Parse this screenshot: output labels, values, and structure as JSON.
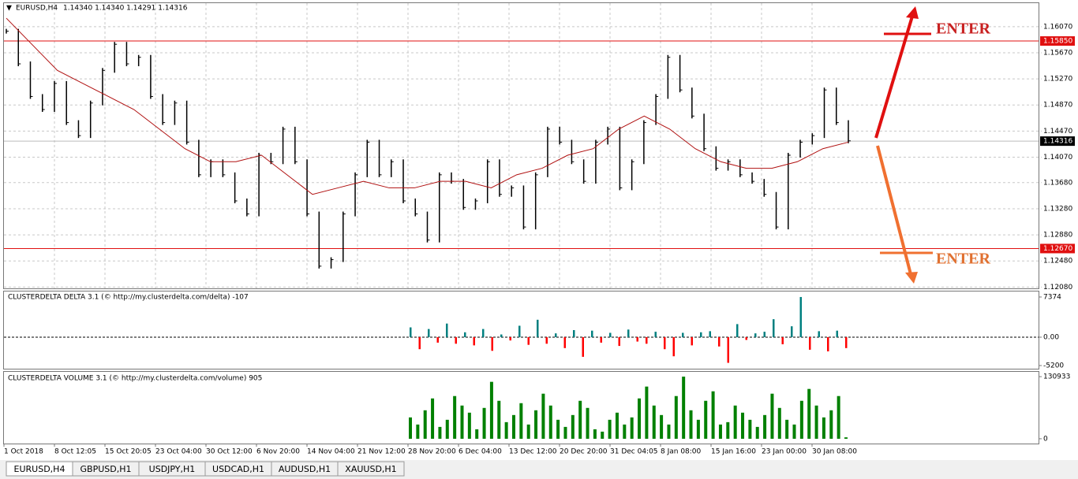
{
  "header": {
    "title": "EURUSD,H4",
    "quote": "1.14340 1.14340 1.14291 1.14316"
  },
  "price": {
    "ylim": [
      1.1206,
      1.1643
    ],
    "yticks": [
      {
        "value": 1.1607,
        "label": "1.16070"
      },
      {
        "value": 1.1567,
        "label": "1.15670"
      },
      {
        "value": 1.1527,
        "label": "1.15270"
      },
      {
        "value": 1.1487,
        "label": "1.14870"
      },
      {
        "value": 1.1447,
        "label": "1.14470"
      },
      {
        "value": 1.1407,
        "label": "1.14070"
      },
      {
        "value": 1.1368,
        "label": "1.13680"
      },
      {
        "value": 1.1328,
        "label": "1.13280"
      },
      {
        "value": 1.1288,
        "label": "1.12880"
      },
      {
        "value": 1.1248,
        "label": "1.12480"
      },
      {
        "value": 1.1208,
        "label": "1.12080"
      }
    ],
    "levels": [
      {
        "value": 1.1585,
        "label": "1.15850"
      },
      {
        "value": 1.1267,
        "label": "1.12670"
      }
    ],
    "current": {
      "value": 1.14316,
      "label": "1.14316"
    },
    "closes": [
      1.16,
      1.155,
      1.15,
      1.148,
      1.152,
      1.146,
      1.144,
      1.149,
      1.154,
      1.158,
      1.155,
      1.156,
      1.15,
      1.146,
      1.149,
      1.143,
      1.138,
      1.14,
      1.138,
      1.134,
      1.132,
      1.141,
      1.14,
      1.145,
      1.14,
      1.132,
      1.124,
      1.125,
      1.132,
      1.138,
      1.143,
      1.138,
      1.14,
      1.134,
      1.132,
      1.128,
      1.138,
      1.137,
      1.133,
      1.134,
      1.14,
      1.135,
      1.136,
      1.13,
      1.138,
      1.145,
      1.143,
      1.14,
      1.137,
      1.143,
      1.145,
      1.136,
      1.14,
      1.146,
      1.15,
      1.156,
      1.151,
      1.147,
      1.142,
      1.139,
      1.14,
      1.138,
      1.137,
      1.135,
      1.13,
      1.141,
      1.143,
      1.144,
      1.151,
      1.146,
      1.1432
    ],
    "ma": [
      1.162,
      1.158,
      1.154,
      1.152,
      1.15,
      1.148,
      1.145,
      1.142,
      1.14,
      1.14,
      1.141,
      1.138,
      1.135,
      1.136,
      1.137,
      1.136,
      1.136,
      1.137,
      1.137,
      1.136,
      1.138,
      1.139,
      1.141,
      1.142,
      1.145,
      1.147,
      1.145,
      1.142,
      1.14,
      1.139,
      1.139,
      1.14,
      1.142,
      1.143
    ],
    "annotations": [
      "ENTER",
      "ENTER"
    ]
  },
  "delta": {
    "title": "CLUSTERDELTA DELTA 3.1 (© http://my.clusterdelta.com/delta) -107",
    "ylim": [
      -5780,
      8382
    ],
    "yticks": [
      7374,
      {
        "value": 0,
        "label": "0.00"
      },
      -5200
    ],
    "values": [
      1800,
      -2200,
      1500,
      -1000,
      2500,
      -1200,
      900,
      -1500,
      1500,
      -2500,
      500,
      -600,
      2100,
      -1400,
      3200,
      -1200,
      700,
      -2000,
      1300,
      -3600,
      1200,
      -1000,
      800,
      -1600,
      1400,
      -800,
      -1200,
      1000,
      -2200,
      -3500,
      800,
      -1500,
      900,
      1100,
      -1700,
      -4700,
      2400,
      -500,
      700,
      1000,
      3300,
      -1300,
      2000,
      7374,
      -2300,
      1100,
      -2600,
      1200,
      -2000
    ]
  },
  "volume": {
    "title": "CLUSTERDELTA VOLUME 3.1 (© http://my.clusterdelta.com/volume) 905",
    "ylim": [
      -10070,
      141000
    ],
    "yticks": [
      130933,
      0
    ],
    "values": [
      45000,
      30000,
      60000,
      85000,
      25000,
      40000,
      90000,
      70000,
      55000,
      20000,
      65000,
      120000,
      80000,
      35000,
      50000,
      75000,
      30000,
      60000,
      95000,
      70000,
      40000,
      25000,
      50000,
      80000,
      65000,
      20000,
      15000,
      40000,
      55000,
      30000,
      45000,
      85000,
      110000,
      70000,
      50000,
      30000,
      90000,
      130933,
      60000,
      40000,
      80000,
      100000,
      30000,
      35000,
      70000,
      55000,
      40000,
      25000,
      50000,
      95000,
      65000,
      40000,
      30000,
      80000,
      105000,
      70000,
      45000,
      60000,
      90000,
      3000
    ]
  },
  "time_labels": [
    "1 Oct 2018",
    "8 Oct 12:05",
    "15 Oct 20:05",
    "23 Oct 04:00",
    "30 Oct 12:00",
    "6 Nov 20:00",
    "14 Nov 04:00",
    "21 Nov 12:00",
    "28 Nov 20:00",
    "6 Dec 04:00",
    "13 Dec 12:00",
    "20 Dec 20:00",
    "31 Dec 04:05",
    "8 Jan 08:00",
    "15 Jan 16:00",
    "23 Jan 00:00",
    "30 Jan 08:00"
  ],
  "tabs": [
    "EURUSD,H4",
    "GBPUSD,H1",
    "USDJPY,H1",
    "USDCAD,H1",
    "AUDUSD,H1",
    "XAUUSD,H1"
  ]
}
